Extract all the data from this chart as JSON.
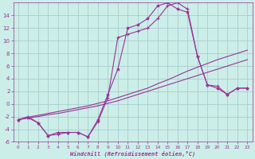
{
  "xlabel": "Windchill (Refroidissement éolien,°C)",
  "background_color": "#cceee8",
  "grid_color": "#aacccc",
  "line_color": "#993399",
  "hours": [
    0,
    1,
    2,
    3,
    4,
    5,
    6,
    7,
    8,
    9,
    10,
    11,
    12,
    13,
    14,
    15,
    16,
    17,
    18,
    19,
    20,
    21,
    22,
    23
  ],
  "temp": [
    -2.5,
    -2.2,
    -3.0,
    -5.0,
    -4.5,
    -4.5,
    -4.5,
    -5.2,
    -2.5,
    1.5,
    5.5,
    12.0,
    12.5,
    13.5,
    15.5,
    16.0,
    15.0,
    14.5,
    7.5,
    3.0,
    2.5,
    1.5,
    2.5,
    2.5
  ],
  "windchill": [
    -2.5,
    -2.0,
    -3.0,
    -5.0,
    -4.8,
    -4.5,
    -4.5,
    -5.2,
    -2.8,
    1.0,
    10.5,
    11.0,
    11.5,
    12.0,
    13.5,
    15.5,
    16.0,
    15.0,
    7.5,
    3.0,
    2.8,
    1.5,
    2.5,
    2.5
  ],
  "line1": [
    -2.5,
    -2.2,
    -2.0,
    -1.7,
    -1.5,
    -1.2,
    -0.9,
    -0.6,
    -0.3,
    0.1,
    0.5,
    1.0,
    1.5,
    2.0,
    2.5,
    3.0,
    3.5,
    4.0,
    4.5,
    5.0,
    5.5,
    6.0,
    6.5,
    7.0
  ],
  "line2": [
    -2.5,
    -2.1,
    -1.8,
    -1.5,
    -1.2,
    -0.9,
    -0.6,
    -0.3,
    0.1,
    0.5,
    1.0,
    1.5,
    2.0,
    2.5,
    3.2,
    3.8,
    4.5,
    5.2,
    5.8,
    6.4,
    7.0,
    7.5,
    8.0,
    8.5
  ],
  "ylim": [
    -6,
    16
  ],
  "yticks": [
    -6,
    -4,
    -2,
    0,
    2,
    4,
    6,
    8,
    10,
    12,
    14
  ],
  "xlim": [
    -0.5,
    23.5
  ]
}
